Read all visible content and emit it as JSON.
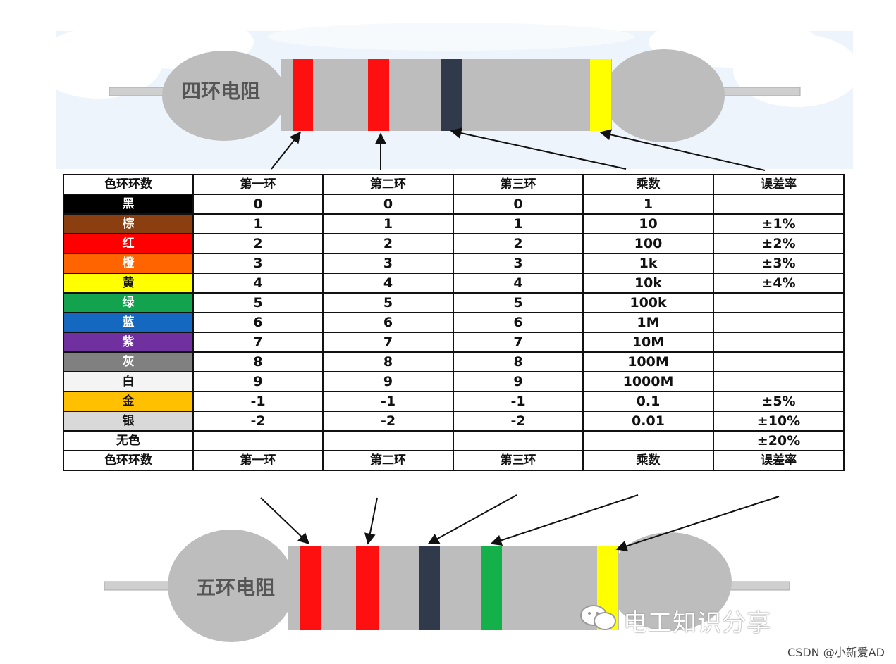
{
  "resistor_four": {
    "label": "四环电阻",
    "bands": [
      "#ff1010",
      "#ff1010",
      "#303a4a",
      "#ffff00"
    ]
  },
  "resistor_five": {
    "label": "五环电阻",
    "bands": [
      "#ff1010",
      "#ff1010",
      "#303a4a",
      "#14b04a",
      "#ffff00"
    ]
  },
  "table": {
    "headers": [
      "色环环数",
      "第一环",
      "第二环",
      "第三环",
      "乘数",
      "误差率"
    ],
    "rows": [
      {
        "name": "黑",
        "bg": "#000000",
        "fg": "#ffffff",
        "d1": "0",
        "d2": "0",
        "d3": "0",
        "mult": "1",
        "tol": ""
      },
      {
        "name": "棕",
        "bg": "#8b3f10",
        "fg": "#ffffff",
        "d1": "1",
        "d2": "1",
        "d3": "1",
        "mult": "10",
        "tol": "±1%"
      },
      {
        "name": "红",
        "bg": "#ff0000",
        "fg": "#ffffff",
        "d1": "2",
        "d2": "2",
        "d3": "2",
        "mult": "100",
        "tol": "±2%"
      },
      {
        "name": "橙",
        "bg": "#ff6400",
        "fg": "#ffffff",
        "d1": "3",
        "d2": "3",
        "d3": "3",
        "mult": "1k",
        "tol": "±3%"
      },
      {
        "name": "黄",
        "bg": "#ffff00",
        "fg": "#111111",
        "d1": "4",
        "d2": "4",
        "d3": "4",
        "mult": "10k",
        "tol": "±4%"
      },
      {
        "name": "绿",
        "bg": "#13a24d",
        "fg": "#ffffff",
        "d1": "5",
        "d2": "5",
        "d3": "5",
        "mult": "100k",
        "tol": ""
      },
      {
        "name": "蓝",
        "bg": "#1568c0",
        "fg": "#ffffff",
        "d1": "6",
        "d2": "6",
        "d3": "6",
        "mult": "1M",
        "tol": ""
      },
      {
        "name": "紫",
        "bg": "#7030a0",
        "fg": "#ffffff",
        "d1": "7",
        "d2": "7",
        "d3": "7",
        "mult": "10M",
        "tol": ""
      },
      {
        "name": "灰",
        "bg": "#808080",
        "fg": "#ffffff",
        "d1": "8",
        "d2": "8",
        "d3": "8",
        "mult": "100M",
        "tol": ""
      },
      {
        "name": "白",
        "bg": "#f4f4f4",
        "fg": "#111111",
        "d1": "9",
        "d2": "9",
        "d3": "9",
        "mult": "1000M",
        "tol": ""
      },
      {
        "name": "金",
        "bg": "#ffc000",
        "fg": "#111111",
        "d1": "-1",
        "d2": "-1",
        "d3": "-1",
        "mult": "0.1",
        "tol": "±5%"
      },
      {
        "name": "银",
        "bg": "#d9d9d9",
        "fg": "#111111",
        "d1": "-2",
        "d2": "-2",
        "d3": "-2",
        "mult": "0.01",
        "tol": "±10%"
      },
      {
        "name": "无色",
        "bg": "#ffffff",
        "fg": "#111111",
        "d1": "",
        "d2": "",
        "d3": "",
        "mult": "",
        "tol": "±20%"
      }
    ],
    "footer": [
      "色环环数",
      "第一环",
      "第二环",
      "第三环",
      "乘数",
      "误差率"
    ]
  },
  "watermark": "电工知识分享",
  "credit": "CSDN @小新爱AD",
  "colors": {
    "body": "#bdbdbd",
    "lead": "#cfcfcf",
    "grid": "#111111"
  }
}
